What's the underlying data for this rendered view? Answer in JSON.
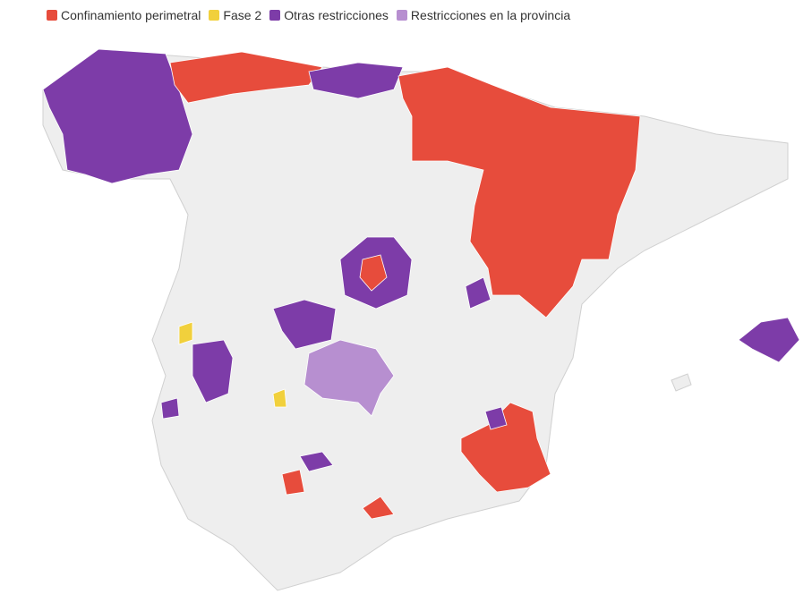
{
  "legend": [
    {
      "label": "Confinamiento perimetral",
      "color": "#e74c3c"
    },
    {
      "label": "Fase 2",
      "color": "#f1d03c"
    },
    {
      "label": "Otras restricciones",
      "color": "#7d3ca8"
    },
    {
      "label": "Restricciones en la provincia",
      "color": "#b78fd0"
    }
  ]
}
